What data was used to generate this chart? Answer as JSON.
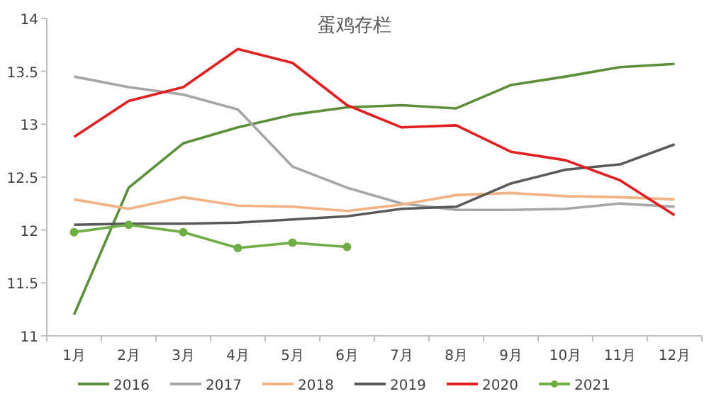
{
  "chart_data": {
    "type": "line",
    "title": "蛋鸡存栏",
    "categories": [
      "1月",
      "2月",
      "3月",
      "4月",
      "5月",
      "6月",
      "7月",
      "8月",
      "9月",
      "10月",
      "11月",
      "12月"
    ],
    "ylim": [
      11,
      14
    ],
    "yticks": [
      11,
      11.5,
      12,
      12.5,
      13,
      13.5,
      14
    ],
    "grid": false,
    "legend": "bottom",
    "marker": "none",
    "line_style": "solid",
    "series": [
      {
        "name": "2016",
        "color": "#5b8f3a",
        "values": [
          11.2,
          12.4,
          12.82,
          12.97,
          13.09,
          13.16,
          13.18,
          13.15,
          13.37,
          13.45,
          13.54,
          13.57
        ]
      },
      {
        "name": "2017",
        "color": "#a6a6a6",
        "values": [
          13.45,
          13.35,
          13.28,
          13.14,
          12.6,
          12.4,
          12.25,
          12.19,
          12.19,
          12.2,
          12.25,
          12.22
        ]
      },
      {
        "name": "2018",
        "color": "#f4b183",
        "values": [
          12.29,
          12.2,
          12.31,
          12.23,
          12.22,
          12.18,
          12.24,
          12.33,
          12.35,
          12.32,
          12.31,
          12.29
        ]
      },
      {
        "name": "2019",
        "color": "#595959",
        "values": [
          12.05,
          12.06,
          12.06,
          12.07,
          12.1,
          12.13,
          12.2,
          12.22,
          12.44,
          12.57,
          12.62,
          12.81
        ]
      },
      {
        "name": "2020",
        "color": "#e02020",
        "values": [
          12.88,
          13.22,
          13.35,
          13.71,
          13.58,
          13.18,
          12.97,
          12.99,
          12.74,
          12.66,
          12.47,
          12.14
        ]
      },
      {
        "name": "2021",
        "color": "#70ad47",
        "marker": "circle",
        "values": [
          11.98,
          12.05,
          11.98,
          11.83,
          11.88,
          11.84,
          null,
          null,
          null,
          null,
          null,
          null
        ]
      }
    ]
  }
}
